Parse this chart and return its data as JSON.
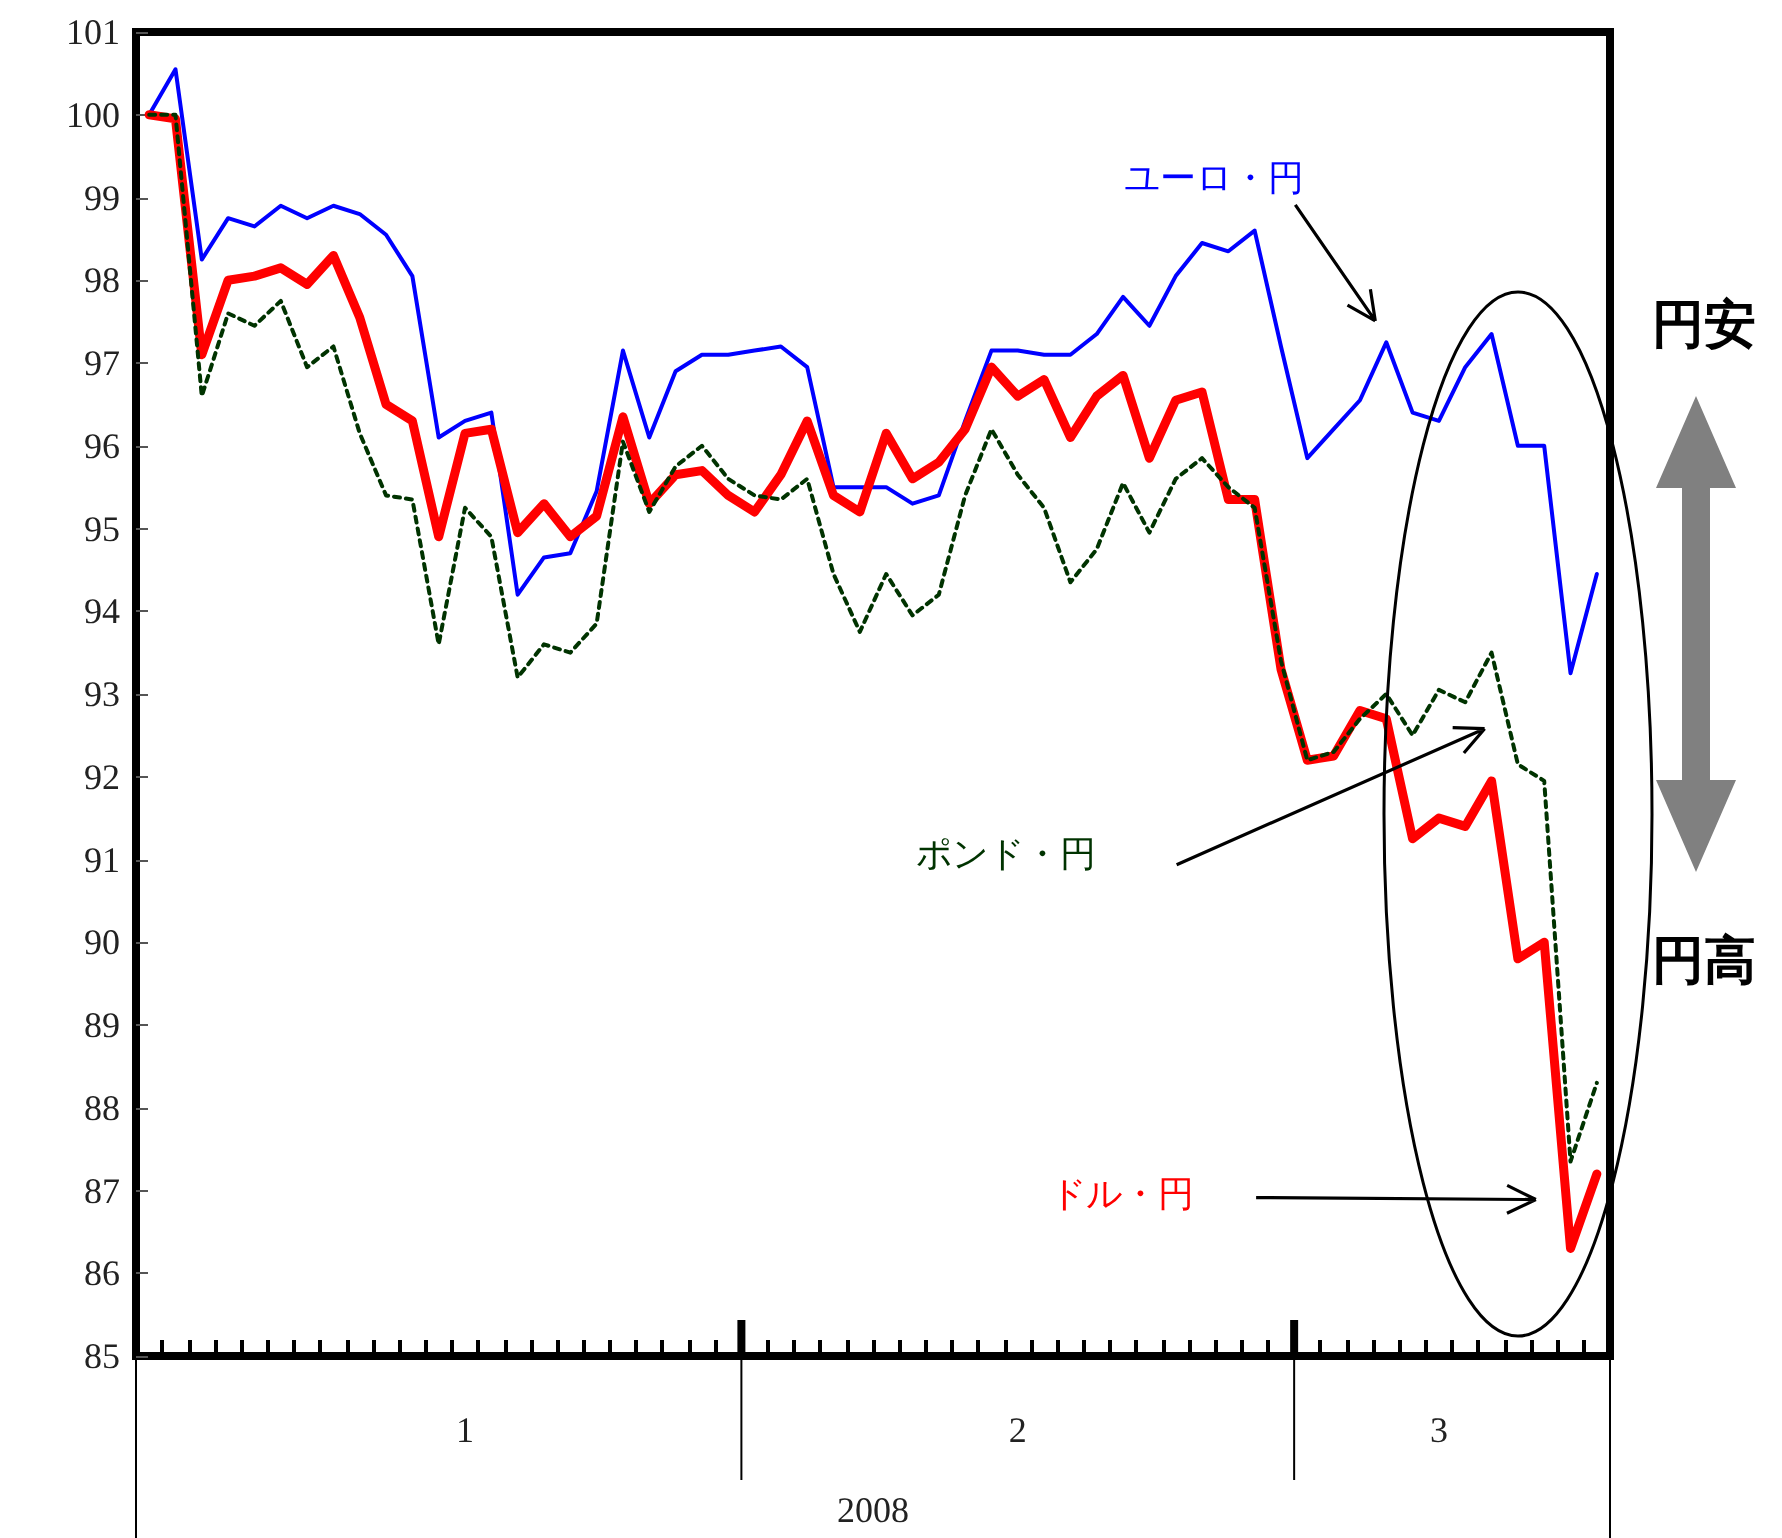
{
  "chart_data": {
    "type": "line",
    "xlabel": "2008",
    "categories": [
      null,
      null,
      null,
      null,
      null,
      null,
      null,
      null,
      null,
      null,
      null,
      null,
      "1",
      null,
      null,
      null,
      null,
      null,
      null,
      null,
      null,
      null,
      null,
      null,
      null,
      null,
      null,
      null,
      null,
      null,
      null,
      null,
      null,
      "2",
      null,
      null,
      null,
      null,
      null,
      null,
      null,
      null,
      null,
      null,
      null,
      null,
      null,
      null,
      null,
      "3",
      null,
      null,
      null,
      null,
      null,
      null
    ],
    "series": [
      {
        "name": "ユーロ・円",
        "color": "#0000ff",
        "line_style": "solid",
        "values": [
          100,
          100.55,
          98.25,
          98.75,
          98.65,
          98.9,
          98.75,
          98.9,
          98.8,
          98.55,
          98.05,
          96.1,
          96.3,
          96.4,
          94.2,
          94.65,
          94.7,
          95.45,
          97.15,
          96.1,
          96.9,
          97.1,
          97.1,
          97.15,
          97.2,
          96.95,
          95.5,
          95.5,
          95.5,
          95.3,
          95.4,
          96.3,
          97.15,
          97.15,
          97.1,
          97.1,
          97.35,
          97.8,
          97.45,
          98.05,
          98.45,
          98.35,
          98.6,
          97.2,
          95.85,
          96.2,
          96.55,
          97.25,
          96.4,
          96.3,
          96.95,
          97.35,
          96.0,
          96.0,
          93.25,
          94.45
        ]
      },
      {
        "name": "ポンド・円",
        "color": "#003300",
        "line_style": "dotted",
        "values": [
          100,
          100,
          96.6,
          97.6,
          97.45,
          97.75,
          96.95,
          97.2,
          96.15,
          95.4,
          95.35,
          93.6,
          95.25,
          94.9,
          93.2,
          93.6,
          93.5,
          93.85,
          96.05,
          95.2,
          95.75,
          96.0,
          95.6,
          95.4,
          95.35,
          95.6,
          94.45,
          93.75,
          94.45,
          93.95,
          94.2,
          95.4,
          96.2,
          95.65,
          95.25,
          94.35,
          94.75,
          95.55,
          94.95,
          95.6,
          95.85,
          95.5,
          95.25,
          93.4,
          92.2,
          92.3,
          92.7,
          93.0,
          92.5,
          93.05,
          92.9,
          93.5,
          92.15,
          91.95,
          87.35,
          88.3
        ]
      },
      {
        "name": "ドル・円",
        "color": "#ff0000",
        "line_style": "solid",
        "values": [
          100,
          99.95,
          97.1,
          98.0,
          98.05,
          98.15,
          97.95,
          98.3,
          97.55,
          96.5,
          96.3,
          94.9,
          96.15,
          96.2,
          94.95,
          95.3,
          94.9,
          95.15,
          96.35,
          95.3,
          95.65,
          95.7,
          95.4,
          95.2,
          95.65,
          96.3,
          95.4,
          95.2,
          96.15,
          95.6,
          95.8,
          96.2,
          96.95,
          96.6,
          96.8,
          96.1,
          96.6,
          96.85,
          95.85,
          96.55,
          96.65,
          95.35,
          95.35,
          93.3,
          92.2,
          92.25,
          92.8,
          92.7,
          91.25,
          91.5,
          91.4,
          91.95,
          89.8,
          90.0,
          86.3,
          87.2
        ]
      }
    ],
    "ylim": [
      85,
      101
    ],
    "yticks": [
      85,
      86,
      87,
      88,
      89,
      90,
      91,
      92,
      93,
      94,
      95,
      96,
      97,
      98,
      99,
      100,
      101
    ],
    "grid": false,
    "legend": false,
    "marker": "none",
    "annotations": [
      "円安",
      "円高"
    ]
  }
}
